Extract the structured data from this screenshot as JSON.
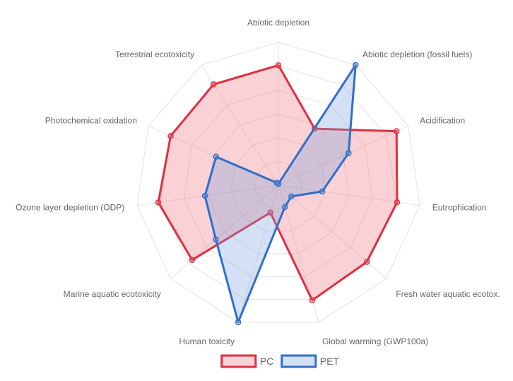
{
  "chart_data": {
    "type": "radar",
    "title": "",
    "categories": [
      "Abiotic depletion",
      "Abiotic depletion (fossil fuels)",
      "Acidification",
      "Eutrophication",
      "Fresh water aquatic ecotox.",
      "Global warming (GWP100a)",
      "Human toxicity",
      "Marine aquatic ecotoxicity",
      "Ozone layer depletion (ODP)",
      "Photochemical oxidation",
      "Terrestrial ecotoxicity"
    ],
    "r_range": [
      0,
      100
    ],
    "grid": true,
    "legend_position": "bottom",
    "series": [
      {
        "name": "PC",
        "color": "#dc3040",
        "fill": "rgba(239,112,122,0.32)",
        "values": [
          84,
          47,
          91,
          84,
          82,
          84,
          20,
          80,
          85,
          83,
          84
        ]
      },
      {
        "name": "PET",
        "color": "#2f6fc8",
        "fill": "rgba(120,160,220,0.32)",
        "values": [
          1,
          100,
          54,
          31,
          12,
          16,
          100,
          58,
          52,
          48,
          2
        ]
      }
    ]
  }
}
